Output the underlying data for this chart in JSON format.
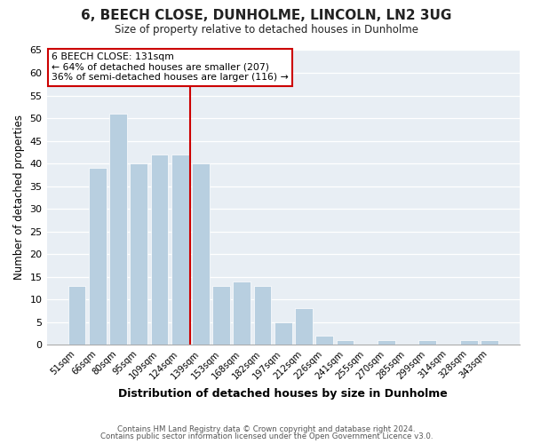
{
  "title": "6, BEECH CLOSE, DUNHOLME, LINCOLN, LN2 3UG",
  "subtitle": "Size of property relative to detached houses in Dunholme",
  "xlabel": "Distribution of detached houses by size in Dunholme",
  "ylabel": "Number of detached properties",
  "bar_color": "#b8cfe0",
  "bar_edge_color": "#ffffff",
  "categories": [
    "51sqm",
    "66sqm",
    "80sqm",
    "95sqm",
    "109sqm",
    "124sqm",
    "139sqm",
    "153sqm",
    "168sqm",
    "182sqm",
    "197sqm",
    "212sqm",
    "226sqm",
    "241sqm",
    "255sqm",
    "270sqm",
    "285sqm",
    "299sqm",
    "314sqm",
    "328sqm",
    "343sqm"
  ],
  "values": [
    13,
    39,
    51,
    40,
    42,
    42,
    40,
    13,
    14,
    13,
    5,
    8,
    2,
    1,
    0,
    1,
    0,
    1,
    0,
    1,
    1
  ],
  "ylim": [
    0,
    65
  ],
  "yticks": [
    0,
    5,
    10,
    15,
    20,
    25,
    30,
    35,
    40,
    45,
    50,
    55,
    60,
    65
  ],
  "vline_x_idx": 6,
  "vline_color": "#cc0000",
  "annotation_title": "6 BEECH CLOSE: 131sqm",
  "annotation_line1": "← 64% of detached houses are smaller (207)",
  "annotation_line2": "36% of semi-detached houses are larger (116) →",
  "annotation_box_facecolor": "#ffffff",
  "annotation_box_edgecolor": "#cc0000",
  "figure_facecolor": "#ffffff",
  "plot_facecolor": "#e8eef4",
  "footer1": "Contains HM Land Registry data © Crown copyright and database right 2024.",
  "footer2": "Contains public sector information licensed under the Open Government Licence v3.0."
}
